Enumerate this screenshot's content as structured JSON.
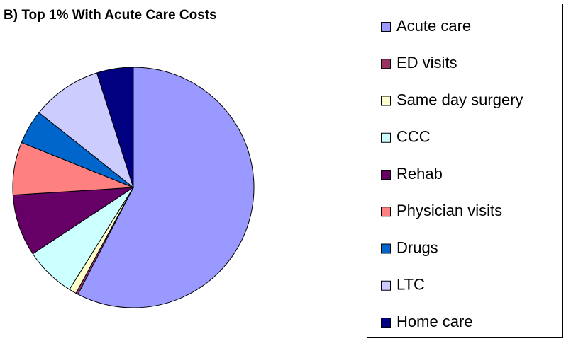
{
  "chart_data": {
    "type": "pie",
    "title": "B) Top 1% With Acute Care Costs",
    "categories": [
      "Acute care",
      "ED visits",
      "Same day surgery",
      "CCC",
      "Rehab",
      "Physician visits",
      "Drugs",
      "LTC",
      "Home care"
    ],
    "values": [
      57.6,
      0.3,
      1.0,
      6.8,
      8.3,
      7.1,
      4.6,
      9.4,
      4.9
    ],
    "colors": [
      "#9999ff",
      "#993366",
      "#ffffcc",
      "#ccffff",
      "#660066",
      "#ff8080",
      "#0066cc",
      "#ccccff",
      "#000080"
    ],
    "legend": "right"
  }
}
